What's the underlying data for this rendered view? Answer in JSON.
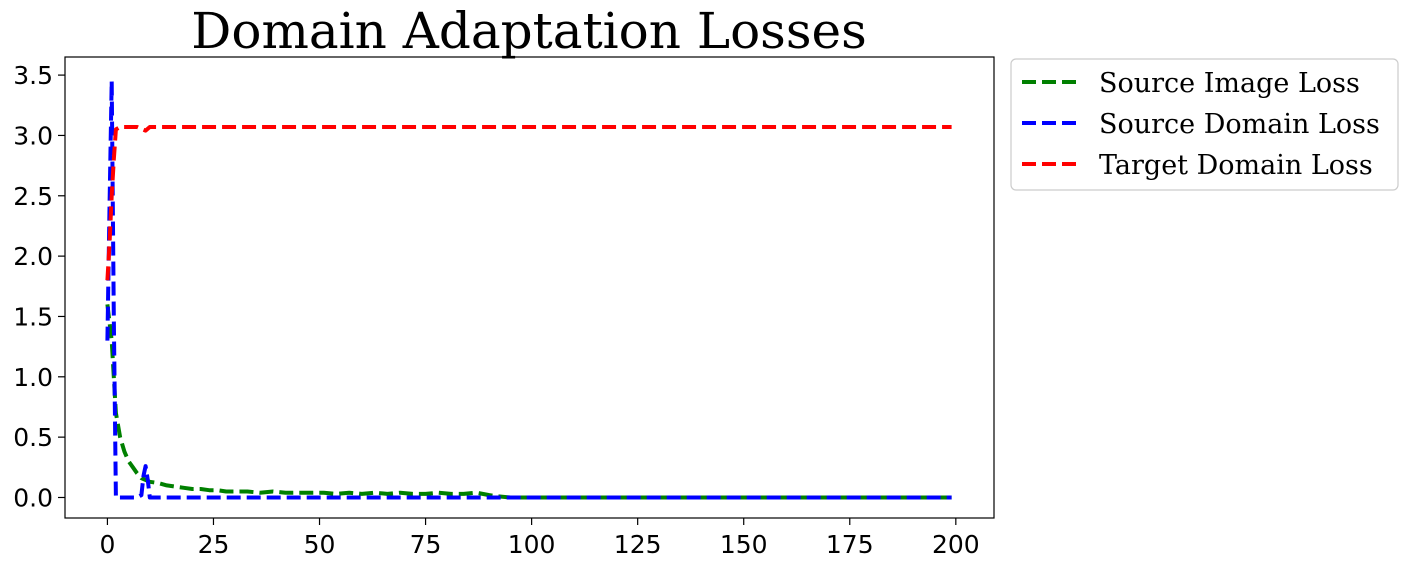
{
  "chart_data": {
    "type": "line",
    "title": "Domain Adaptation Losses",
    "xlabel": "",
    "ylabel": "",
    "xlim": [
      -10,
      209
    ],
    "ylim": [
      -0.17,
      3.65
    ],
    "xticks": [
      0,
      25,
      50,
      75,
      100,
      125,
      150,
      175,
      200
    ],
    "xtick_labels": [
      "0",
      "25",
      "50",
      "75",
      "100",
      "125",
      "150",
      "175",
      "200"
    ],
    "yticks": [
      0.0,
      0.5,
      1.0,
      1.5,
      2.0,
      2.5,
      3.0,
      3.5
    ],
    "ytick_labels": [
      "0.0",
      "0.5",
      "1.0",
      "1.5",
      "2.0",
      "2.5",
      "3.0",
      "3.5"
    ],
    "grid": false,
    "legend_position": "outside-upper-right",
    "series": [
      {
        "name": "Source Image Loss",
        "color": "#008000",
        "style": "dashed",
        "x": [
          0,
          1,
          2,
          3,
          4,
          5,
          6,
          7,
          8,
          10,
          12,
          14,
          16,
          18,
          20,
          22,
          24,
          26,
          28,
          30,
          33,
          36,
          39,
          42,
          45,
          48,
          51,
          54,
          57,
          60,
          63,
          66,
          69,
          72,
          75,
          78,
          81,
          84,
          87,
          90,
          92,
          95,
          100,
          120,
          150,
          199
        ],
        "y": [
          1.6,
          1.3,
          0.7,
          0.5,
          0.38,
          0.3,
          0.25,
          0.2,
          0.16,
          0.13,
          0.12,
          0.1,
          0.09,
          0.08,
          0.07,
          0.07,
          0.06,
          0.06,
          0.05,
          0.05,
          0.05,
          0.04,
          0.05,
          0.04,
          0.04,
          0.04,
          0.04,
          0.03,
          0.04,
          0.03,
          0.04,
          0.03,
          0.04,
          0.03,
          0.03,
          0.04,
          0.03,
          0.03,
          0.04,
          0.02,
          0.01,
          0.0,
          0.0,
          0.0,
          0.0,
          0.0
        ]
      },
      {
        "name": "Source Domain Loss",
        "color": "#0000ff",
        "style": "dashed",
        "x": [
          0,
          0.5,
          1,
          1.5,
          2,
          3,
          5,
          7,
          8,
          8.5,
          9,
          9.5,
          10,
          11,
          15,
          50,
          100,
          150,
          199
        ],
        "y": [
          1.3,
          2.4,
          3.45,
          1.5,
          0.0,
          0.0,
          0.0,
          0.0,
          0.02,
          0.18,
          0.26,
          0.15,
          0.0,
          0.0,
          0.0,
          0.0,
          0.0,
          0.0,
          0.0
        ]
      },
      {
        "name": "Target Domain Loss",
        "color": "#ff0000",
        "style": "dashed",
        "x": [
          0,
          0.5,
          1,
          1.5,
          2,
          3,
          5,
          7,
          9,
          10,
          12,
          20,
          50,
          100,
          150,
          199
        ],
        "y": [
          1.8,
          2.1,
          2.5,
          2.8,
          3.05,
          3.07,
          3.07,
          3.07,
          3.04,
          3.07,
          3.07,
          3.07,
          3.07,
          3.07,
          3.07,
          3.07
        ]
      }
    ]
  }
}
